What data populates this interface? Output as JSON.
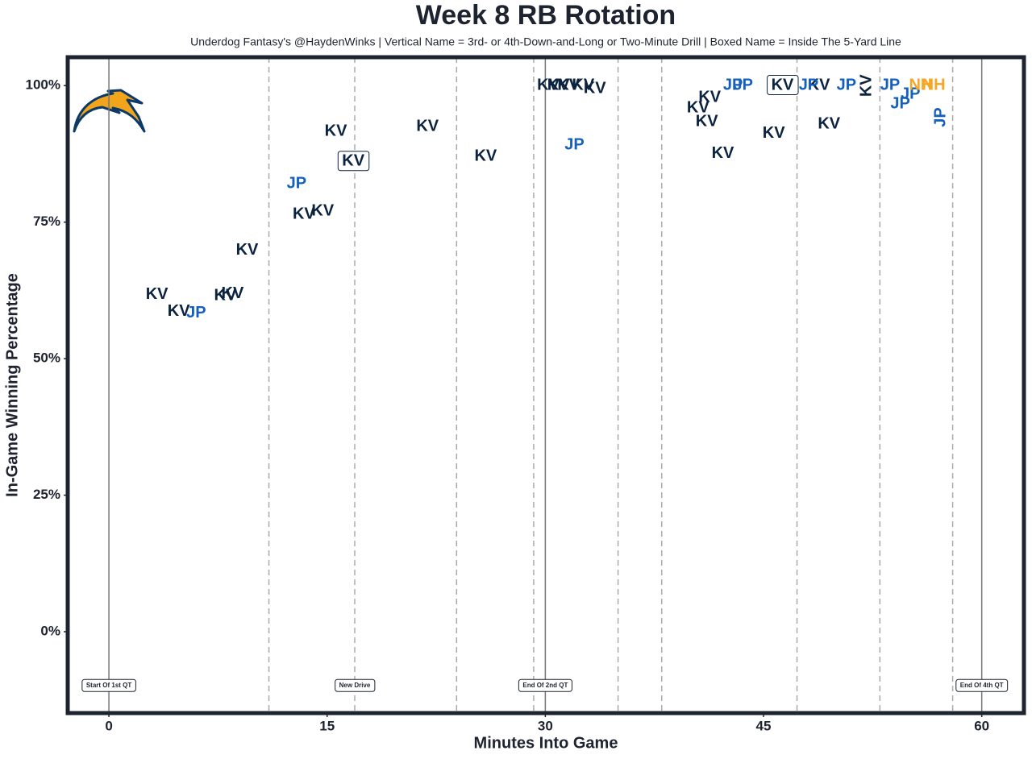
{
  "chart_data": {
    "type": "text-scatter",
    "title": "Week 8 RB Rotation",
    "subtitle": "Underdog Fantasy's @HaydenWinks | Vertical Name = 3rd- or 4th-Down-and-Long or Two-Minute Drill | Boxed Name = Inside The 5-Yard Line",
    "x_label": "Minutes Into Game",
    "y_label": "In-Game Winning Percentage",
    "xlim": [
      -2.83,
      62.9
    ],
    "ylim": [
      -14.9,
      105.2
    ],
    "xticks": [
      0,
      15,
      30,
      45,
      60
    ],
    "yticks": [
      {
        "value": 0,
        "label": "0%"
      },
      {
        "value": 25,
        "label": "25%"
      },
      {
        "value": 50,
        "label": "50%"
      },
      {
        "value": 75,
        "label": "75%"
      },
      {
        "value": 100,
        "label": "100%"
      }
    ],
    "solid_lines": [
      0,
      30,
      60
    ],
    "dashed_lines": [
      11.0,
      16.9,
      23.9,
      29.2,
      35.0,
      38.0,
      47.3,
      53.0,
      58.0
    ],
    "annotations": [
      {
        "x": 0,
        "y": -9.9,
        "text": "Start Of 1st QT"
      },
      {
        "x": 16.9,
        "y": -9.9,
        "text": "New Drive"
      },
      {
        "x": 30,
        "y": -9.9,
        "text": "End Of 2nd QT"
      },
      {
        "x": 60,
        "y": -9.9,
        "text": "End Of 4th QT"
      }
    ],
    "series": [
      {
        "name": "KV",
        "color": "#0c2340",
        "x": [
          3.3,
          4.8,
          8.0,
          8.5,
          9.5,
          13.4,
          14.7,
          15.6,
          16.8,
          21.9,
          25.9,
          30.2,
          30.9,
          31.6,
          32.6,
          33.4,
          40.5,
          41.3,
          41.1,
          42.2,
          45.7,
          46.3,
          48.8,
          49.5,
          52.1
        ],
        "values": [
          61.7,
          58.6,
          61.5,
          61.9,
          69.8,
          76.4,
          77.0,
          91.6,
          86.1,
          92.5,
          87.0,
          100,
          100,
          100,
          100,
          99.4,
          95.9,
          97.8,
          93.4,
          87.5,
          91.2,
          100,
          100,
          92.9,
          100
        ],
        "vertical": [
          false,
          false,
          false,
          false,
          false,
          false,
          false,
          false,
          false,
          false,
          false,
          false,
          false,
          false,
          false,
          false,
          false,
          false,
          false,
          false,
          false,
          false,
          false,
          false,
          true
        ],
        "boxed": [
          false,
          false,
          false,
          false,
          false,
          false,
          false,
          false,
          true,
          false,
          false,
          false,
          false,
          false,
          false,
          false,
          false,
          false,
          false,
          false,
          false,
          true,
          false,
          false,
          false
        ]
      },
      {
        "name": "JP",
        "color": "#1560bd",
        "x": [
          6.0,
          12.9,
          32.0,
          42.9,
          43.6,
          48.1,
          50.7,
          53.7,
          54.4,
          55.1,
          57.2
        ],
        "values": [
          58.3,
          82.0,
          89.1,
          100,
          100,
          100,
          100,
          100,
          96.6,
          98.4,
          94.2
        ],
        "vertical": [
          false,
          false,
          false,
          false,
          false,
          false,
          false,
          false,
          false,
          false,
          true
        ],
        "boxed": [
          false,
          false,
          false,
          false,
          false,
          false,
          false,
          false,
          false,
          false,
          false
        ]
      },
      {
        "name": "NH",
        "color": "#f5a623",
        "x": [
          55.8,
          56.7
        ],
        "values": [
          100,
          100
        ],
        "vertical": [
          false,
          false
        ],
        "boxed": [
          false,
          false
        ]
      }
    ]
  }
}
